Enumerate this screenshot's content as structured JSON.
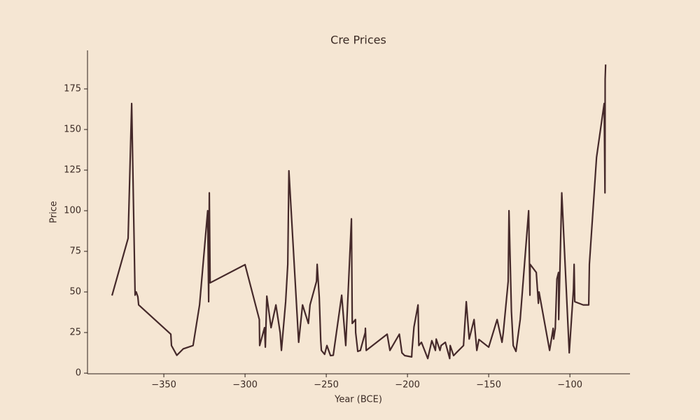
{
  "chart_data": {
    "type": "line",
    "title": "Cre Prices",
    "xlabel": "Year (BCE)",
    "ylabel": "Price",
    "color": "#45292a",
    "line_width": 2.2,
    "xlim": [
      -397,
      -63
    ],
    "ylim": [
      -0.4,
      198.7
    ],
    "xticks": [
      {
        "value": -350,
        "label": "−350"
      },
      {
        "value": -300,
        "label": "−300"
      },
      {
        "value": -250,
        "label": "−250"
      },
      {
        "value": -200,
        "label": "−200"
      },
      {
        "value": -150,
        "label": "−150"
      },
      {
        "value": -100,
        "label": "−100"
      }
    ],
    "yticks": [
      0,
      25,
      50,
      75,
      100,
      125,
      150,
      175
    ],
    "x": [
      -381.9,
      -372,
      -369.8,
      -367.7,
      -367,
      -366,
      -365.5,
      -345.7,
      -345.3,
      -342,
      -338,
      -332,
      -328,
      -323,
      -322.4,
      -322,
      -321.5,
      -300,
      -291.2,
      -291,
      -288,
      -287.5,
      -286.6,
      -284,
      -281,
      -278.4,
      -277.6,
      -275,
      -273.7,
      -273,
      -267,
      -264.6,
      -261,
      -260,
      -256,
      -255.6,
      -254.3,
      -253.4,
      -253,
      -251,
      -249.6,
      -247.4,
      -245.7,
      -240.5,
      -238,
      -234.5,
      -234,
      -232,
      -231.9,
      -230.6,
      -229,
      -226,
      -225.9,
      -225.4,
      -212.5,
      -210.8,
      -205,
      -203.4,
      -201.7,
      -197.4,
      -197.2,
      -196,
      -193.5,
      -193,
      -191.4,
      -187.5,
      -185,
      -182.8,
      -182.3,
      -180,
      -179.3,
      -176.7,
      -174,
      -173.7,
      -171.6,
      -170,
      -165.5,
      -163.8,
      -162,
      -159,
      -157.3,
      -156,
      -150,
      -144.8,
      -141.8,
      -141,
      -138,
      -137.5,
      -136,
      -134.9,
      -133.2,
      -130.6,
      -125.4,
      -124.6,
      -124.5,
      -120.7,
      -119.4,
      -119,
      -112.5,
      -110.3,
      -110,
      -109,
      -108,
      -107,
      -106.9,
      -105,
      -100.4,
      -97.8,
      -97.4,
      -97,
      -91.8,
      -88.4,
      -88,
      -83.6,
      -78.9,
      -78.4,
      -78.3,
      -78
    ],
    "values": [
      47.8,
      83,
      166,
      48,
      50,
      47,
      42,
      24,
      17,
      11,
      15,
      17,
      42,
      100,
      44,
      111,
      55.6,
      66.8,
      33,
      17,
      28,
      16,
      47.4,
      28,
      42,
      25,
      14,
      44,
      67,
      124.6,
      19,
      42,
      30.6,
      42,
      56.5,
      67,
      46.5,
      20,
      14,
      11.6,
      17,
      10.8,
      11,
      48,
      17,
      95,
      30.6,
      33,
      25,
      13.4,
      14,
      25,
      27.6,
      14,
      24,
      14,
      24,
      12.5,
      10.8,
      10,
      14,
      28.4,
      42,
      17,
      19,
      9,
      20,
      14,
      21,
      14,
      17,
      19,
      9,
      17,
      10.8,
      12.5,
      17,
      44,
      21,
      33,
      14,
      20.7,
      16,
      33,
      19,
      25,
      56.5,
      100,
      38,
      17,
      13.4,
      33,
      100,
      48,
      67,
      62,
      43,
      50,
      14,
      27.6,
      21,
      27.6,
      58,
      62,
      33,
      111,
      12.5,
      51.7,
      67,
      44,
      42,
      42,
      67,
      132.8,
      166,
      111,
      181,
      190
    ]
  }
}
